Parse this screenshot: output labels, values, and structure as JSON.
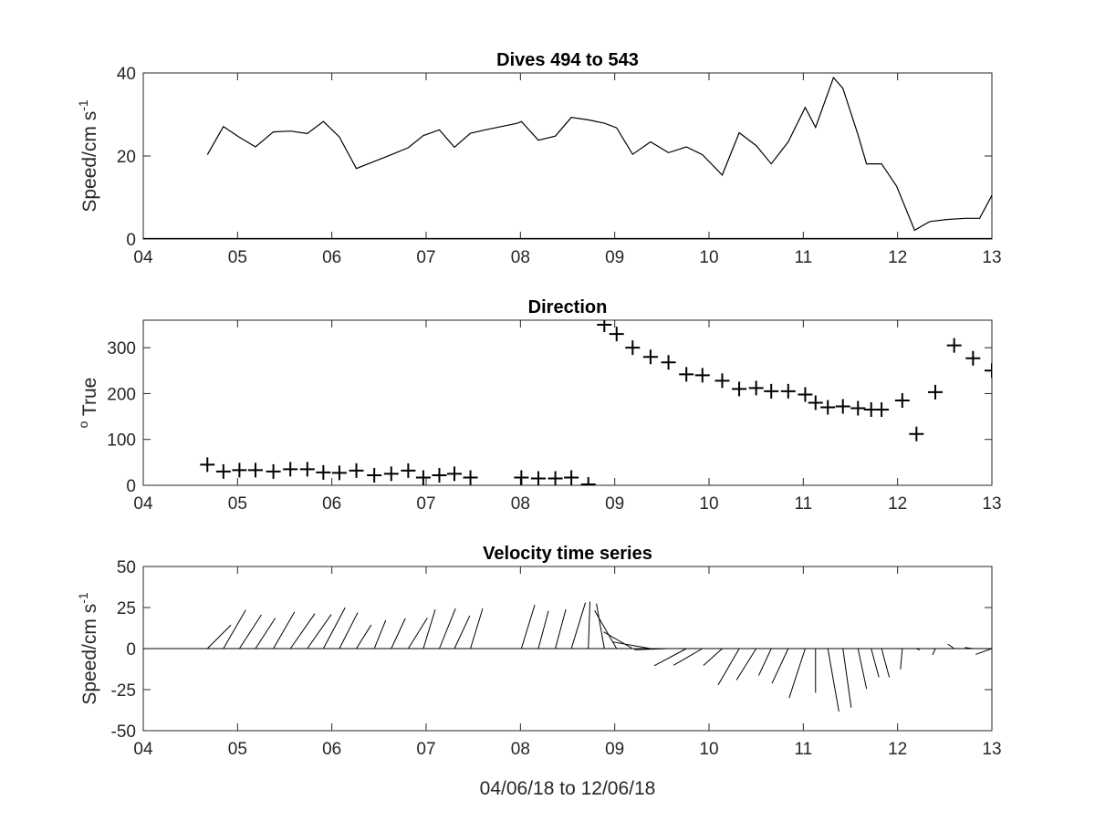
{
  "chart_data": [
    {
      "type": "line",
      "title": "Dives 494 to 543",
      "ylabel": {
        "main": "Speed/cm s",
        "sup": "-1"
      },
      "xlabel": "",
      "xlim": [
        4,
        13
      ],
      "ylim": [
        0,
        40
      ],
      "xticks": [
        "04",
        "05",
        "06",
        "07",
        "08",
        "09",
        "10",
        "11",
        "12",
        "13"
      ],
      "yticks": [
        "0",
        "20",
        "40"
      ],
      "series": [
        {
          "x": [
            4.68,
            4.85,
            5.02,
            5.19,
            5.38,
            5.56,
            5.74,
            5.91,
            6.08,
            6.26,
            6.45,
            6.63,
            6.81,
            6.97,
            7.14,
            7.3,
            7.47,
            7.63,
            7.8,
            7.97,
            8.01,
            8.19,
            8.37,
            8.54,
            8.72,
            8.89,
            9.02,
            9.19,
            9.38,
            9.57,
            9.76,
            9.93,
            10.14,
            10.32,
            10.5,
            10.66,
            10.84,
            11.02,
            11.13,
            11.32,
            11.42,
            11.58,
            11.67,
            11.83,
            11.99,
            12.18,
            12.34,
            12.52,
            12.72,
            12.87,
            13.0
          ],
          "y": [
            20.3,
            27.1,
            24.5,
            22.2,
            25.8,
            26.0,
            25.4,
            28.3,
            24.6,
            17.0,
            18.7,
            20.3,
            22.0,
            24.9,
            26.3,
            22.1,
            25.5,
            26.3,
            27.1,
            27.9,
            28.3,
            23.8,
            24.8,
            29.3,
            28.7,
            27.9,
            26.8,
            20.4,
            23.4,
            20.8,
            22.2,
            20.3,
            15.4,
            25.6,
            22.5,
            18.1,
            23.4,
            31.7,
            26.9,
            38.9,
            36.3,
            25.1,
            18.1,
            18.1,
            12.7,
            2.1,
            4.2,
            4.7,
            5.0,
            5.0,
            10.5
          ]
        }
      ]
    },
    {
      "type": "scatter",
      "title": "Direction",
      "ylabel": {
        "sup": "o",
        "main": " True"
      },
      "xlabel": "",
      "xlim": [
        4,
        13
      ],
      "ylim": [
        0,
        360
      ],
      "xticks": [
        "04",
        "05",
        "06",
        "07",
        "08",
        "09",
        "10",
        "11",
        "12",
        "13"
      ],
      "yticks": [
        "0",
        "100",
        "200",
        "300"
      ],
      "series": [
        {
          "marker": "+",
          "x": [
            4.68,
            4.85,
            5.02,
            5.19,
            5.38,
            5.56,
            5.74,
            5.91,
            6.08,
            6.26,
            6.45,
            6.63,
            6.81,
            6.97,
            7.14,
            7.3,
            7.47,
            8.01,
            8.19,
            8.37,
            8.54,
            8.72,
            8.89,
            9.02,
            9.19,
            9.38,
            9.57,
            9.76,
            9.93,
            10.14,
            10.32,
            10.5,
            10.66,
            10.84,
            11.02,
            11.13,
            11.26,
            11.42,
            11.58,
            11.72,
            11.83,
            12.05,
            12.2,
            12.4,
            12.6,
            12.8,
            13.0
          ],
          "y": [
            45,
            30,
            33,
            33,
            30,
            35,
            35,
            28,
            27,
            32,
            22,
            25,
            32,
            17,
            22,
            25,
            17,
            17,
            15,
            15,
            17,
            2,
            350,
            330,
            300,
            280,
            268,
            242,
            240,
            228,
            210,
            212,
            205,
            205,
            198,
            180,
            170,
            172,
            168,
            165,
            165,
            185,
            112,
            203,
            305,
            277,
            250
          ]
        }
      ]
    },
    {
      "type": "quiver",
      "title": "Velocity time series",
      "ylabel": {
        "main": "Speed/cm s",
        "sup": "-1"
      },
      "xlabel": "04/06/18 to 12/06/18",
      "xlim": [
        4,
        13
      ],
      "ylim": [
        -50,
        50
      ],
      "xticks": [
        "04",
        "05",
        "06",
        "07",
        "08",
        "09",
        "10",
        "11",
        "12",
        "13"
      ],
      "yticks": [
        "50",
        "25",
        "0",
        "-25",
        "-50"
      ],
      "baseline": 0,
      "vectors": {
        "t": [
          4.68,
          4.85,
          5.02,
          5.19,
          5.38,
          5.56,
          5.74,
          5.91,
          6.08,
          6.26,
          6.45,
          6.63,
          6.81,
          6.97,
          7.14,
          7.3,
          7.47,
          8.01,
          8.19,
          8.37,
          8.54,
          8.72,
          8.89,
          9.02,
          9.19,
          9.38,
          9.57,
          9.76,
          9.93,
          10.14,
          10.32,
          10.5,
          10.66,
          10.84,
          11.02,
          11.13,
          11.26,
          11.42,
          11.58,
          11.72,
          11.83,
          12.05,
          12.2,
          12.4,
          12.6,
          12.8,
          13.0
        ],
        "speed": [
          20.3,
          27.1,
          24.5,
          22.2,
          25.8,
          26.0,
          25.4,
          28.3,
          24.6,
          17.0,
          18.7,
          20.3,
          22.0,
          24.9,
          26.3,
          22.1,
          25.5,
          27.9,
          23.8,
          24.8,
          29.3,
          28.7,
          27.9,
          26.8,
          20.4,
          23.4,
          20.8,
          22.2,
          20.3,
          15.4,
          25.6,
          22.5,
          18.1,
          23.4,
          31.7,
          26.9,
          38.9,
          36.3,
          25.1,
          18.1,
          18.1,
          12.7,
          2.1,
          4.2,
          4.7,
          5.0,
          10.5
        ],
        "dir": [
          45,
          30,
          33,
          33,
          30,
          35,
          35,
          28,
          27,
          32,
          22,
          25,
          32,
          17,
          22,
          25,
          17,
          17,
          15,
          15,
          17,
          2,
          350,
          330,
          300,
          280,
          268,
          242,
          240,
          228,
          210,
          212,
          205,
          205,
          198,
          180,
          170,
          172,
          168,
          165,
          165,
          185,
          112,
          203,
          305,
          277,
          250
        ]
      }
    }
  ]
}
